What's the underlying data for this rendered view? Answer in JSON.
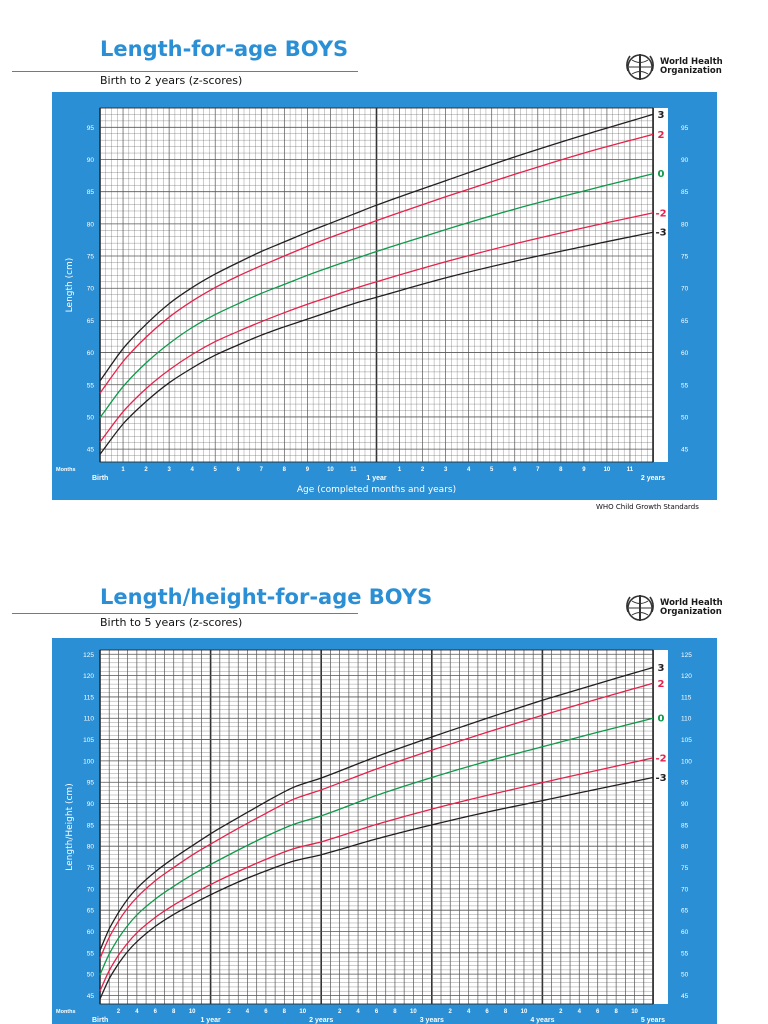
{
  "organization": {
    "line1": "World Health",
    "line2": "Organization"
  },
  "colors": {
    "brand": "#2a8fd4",
    "sd3": "#231f20",
    "sd2": "#e5224b",
    "median": "#0f9a4a"
  },
  "footer": "WHO Child Growth Standards",
  "chart_data": [
    {
      "type": "line",
      "title": "Length-for-age BOYS",
      "subtitle": "Birth to 2 years (z-scores)",
      "xlabel": "Age (completed months and years)",
      "ylabel": "Length (cm)",
      "x_unit_label": "Months",
      "xlim": [
        0,
        24
      ],
      "ylim": [
        43,
        98
      ],
      "yticks": [
        45,
        50,
        55,
        60,
        65,
        70,
        75,
        80,
        85,
        90,
        95
      ],
      "grid": true,
      "x_major_labels": [
        {
          "x": 0,
          "label": "Birth"
        },
        {
          "x": 12,
          "label": "1 year"
        },
        {
          "x": 24,
          "label": "2 years"
        }
      ],
      "x_minor_labels": [
        {
          "x": 1,
          "label": "1"
        },
        {
          "x": 2,
          "label": "2"
        },
        {
          "x": 3,
          "label": "3"
        },
        {
          "x": 4,
          "label": "4"
        },
        {
          "x": 5,
          "label": "5"
        },
        {
          "x": 6,
          "label": "6"
        },
        {
          "x": 7,
          "label": "7"
        },
        {
          "x": 8,
          "label": "8"
        },
        {
          "x": 9,
          "label": "9"
        },
        {
          "x": 10,
          "label": "10"
        },
        {
          "x": 11,
          "label": "11"
        },
        {
          "x": 13,
          "label": "1"
        },
        {
          "x": 14,
          "label": "2"
        },
        {
          "x": 15,
          "label": "3"
        },
        {
          "x": 16,
          "label": "4"
        },
        {
          "x": 17,
          "label": "5"
        },
        {
          "x": 18,
          "label": "6"
        },
        {
          "x": 19,
          "label": "7"
        },
        {
          "x": 20,
          "label": "8"
        },
        {
          "x": 21,
          "label": "9"
        },
        {
          "x": 22,
          "label": "10"
        },
        {
          "x": 23,
          "label": "11"
        }
      ],
      "series": [
        {
          "name": "3",
          "color": "#231f20",
          "x": [
            0,
            1,
            2,
            3,
            4,
            5,
            6,
            7,
            8,
            9,
            10,
            11,
            12,
            15,
            18,
            21,
            24
          ],
          "values": [
            55.6,
            60.6,
            64.4,
            67.6,
            70.1,
            72.2,
            74.0,
            75.7,
            77.2,
            78.7,
            80.1,
            81.5,
            82.9,
            86.7,
            90.4,
            93.8,
            97.0
          ]
        },
        {
          "name": "2",
          "color": "#e5224b",
          "x": [
            0,
            1,
            2,
            3,
            4,
            5,
            6,
            7,
            8,
            9,
            10,
            11,
            12,
            15,
            18,
            21,
            24
          ],
          "values": [
            53.7,
            58.6,
            62.4,
            65.5,
            68.0,
            70.1,
            71.9,
            73.5,
            75.0,
            76.5,
            77.9,
            79.2,
            80.5,
            84.2,
            87.7,
            91.0,
            93.9
          ]
        },
        {
          "name": "0",
          "color": "#0f9a4a",
          "x": [
            0,
            1,
            2,
            3,
            4,
            5,
            6,
            7,
            8,
            9,
            10,
            11,
            12,
            15,
            18,
            21,
            24
          ],
          "values": [
            49.9,
            54.7,
            58.4,
            61.4,
            63.9,
            65.9,
            67.6,
            69.2,
            70.6,
            72.0,
            73.3,
            74.5,
            75.7,
            79.1,
            82.3,
            85.1,
            87.8
          ]
        },
        {
          "name": "-2",
          "color": "#e5224b",
          "x": [
            0,
            1,
            2,
            3,
            4,
            5,
            6,
            7,
            8,
            9,
            10,
            11,
            12,
            15,
            18,
            21,
            24
          ],
          "values": [
            46.1,
            50.8,
            54.4,
            57.3,
            59.7,
            61.7,
            63.3,
            64.8,
            66.2,
            67.5,
            68.7,
            69.9,
            71.0,
            74.1,
            76.9,
            79.4,
            81.7
          ]
        },
        {
          "name": "-3",
          "color": "#231f20",
          "x": [
            0,
            1,
            2,
            3,
            4,
            5,
            6,
            7,
            8,
            9,
            10,
            11,
            12,
            15,
            18,
            21,
            24
          ],
          "values": [
            44.2,
            48.9,
            52.4,
            55.3,
            57.6,
            59.6,
            61.2,
            62.7,
            64.0,
            65.2,
            66.4,
            67.6,
            68.6,
            71.6,
            74.2,
            76.5,
            78.7
          ]
        }
      ]
    },
    {
      "type": "line",
      "title": "Length/height-for-age BOYS",
      "subtitle": "Birth to 5 years (z-scores)",
      "ylabel": "Length/Height (cm)",
      "x_unit_label": "Months",
      "xlim": [
        0,
        60
      ],
      "ylim": [
        43,
        126
      ],
      "yticks": [
        45,
        50,
        55,
        60,
        65,
        70,
        75,
        80,
        85,
        90,
        95,
        100,
        105,
        110,
        115,
        120,
        125
      ],
      "grid": true,
      "x_major_labels": [
        {
          "x": 0,
          "label": "Birth"
        },
        {
          "x": 12,
          "label": "1 year"
        },
        {
          "x": 24,
          "label": "2 years"
        },
        {
          "x": 36,
          "label": "3 years"
        },
        {
          "x": 48,
          "label": "4 years"
        },
        {
          "x": 60,
          "label": "5 years"
        }
      ],
      "x_minor_labels": [
        {
          "x": 2,
          "label": "2"
        },
        {
          "x": 4,
          "label": "4"
        },
        {
          "x": 6,
          "label": "6"
        },
        {
          "x": 8,
          "label": "8"
        },
        {
          "x": 10,
          "label": "10"
        },
        {
          "x": 14,
          "label": "2"
        },
        {
          "x": 16,
          "label": "4"
        },
        {
          "x": 18,
          "label": "6"
        },
        {
          "x": 20,
          "label": "8"
        },
        {
          "x": 22,
          "label": "10"
        },
        {
          "x": 26,
          "label": "2"
        },
        {
          "x": 28,
          "label": "4"
        },
        {
          "x": 30,
          "label": "6"
        },
        {
          "x": 32,
          "label": "8"
        },
        {
          "x": 34,
          "label": "10"
        },
        {
          "x": 38,
          "label": "2"
        },
        {
          "x": 40,
          "label": "4"
        },
        {
          "x": 42,
          "label": "6"
        },
        {
          "x": 44,
          "label": "8"
        },
        {
          "x": 46,
          "label": "10"
        },
        {
          "x": 50,
          "label": "2"
        },
        {
          "x": 52,
          "label": "4"
        },
        {
          "x": 54,
          "label": "6"
        },
        {
          "x": 56,
          "label": "8"
        },
        {
          "x": 58,
          "label": "10"
        }
      ],
      "series": [
        {
          "name": "3",
          "color": "#231f20",
          "x": [
            0,
            1,
            2,
            3,
            4,
            6,
            8,
            10,
            12,
            15,
            18,
            21,
            24,
            30,
            36,
            42,
            48,
            54,
            60
          ],
          "values": [
            55.6,
            60.6,
            64.4,
            67.6,
            70.1,
            74.0,
            77.2,
            80.1,
            82.9,
            86.7,
            90.4,
            93.8,
            96.0,
            101.0,
            105.6,
            110.0,
            114.2,
            118.1,
            121.9
          ]
        },
        {
          "name": "2",
          "color": "#e5224b",
          "x": [
            0,
            1,
            2,
            3,
            4,
            6,
            8,
            10,
            12,
            15,
            18,
            21,
            24,
            30,
            36,
            42,
            48,
            54,
            60
          ],
          "values": [
            53.7,
            58.6,
            62.4,
            65.5,
            68.0,
            71.9,
            75.0,
            77.9,
            80.5,
            84.2,
            87.7,
            91.0,
            93.2,
            98.1,
            102.5,
            106.7,
            110.7,
            114.5,
            118.2
          ]
        },
        {
          "name": "0",
          "color": "#0f9a4a",
          "x": [
            0,
            1,
            2,
            3,
            4,
            6,
            8,
            10,
            12,
            15,
            18,
            21,
            24,
            30,
            36,
            42,
            48,
            54,
            60
          ],
          "values": [
            49.9,
            54.7,
            58.4,
            61.4,
            63.9,
            67.6,
            70.6,
            73.3,
            75.7,
            79.1,
            82.3,
            85.1,
            87.1,
            91.9,
            96.1,
            99.9,
            103.3,
            106.7,
            110.0
          ]
        },
        {
          "name": "-2",
          "color": "#e5224b",
          "x": [
            0,
            1,
            2,
            3,
            4,
            6,
            8,
            10,
            12,
            15,
            18,
            21,
            24,
            30,
            36,
            42,
            48,
            54,
            60
          ],
          "values": [
            46.1,
            50.8,
            54.4,
            57.3,
            59.7,
            63.3,
            66.2,
            68.7,
            71.0,
            74.1,
            76.9,
            79.4,
            81.0,
            85.1,
            88.7,
            91.9,
            94.9,
            97.8,
            100.7
          ]
        },
        {
          "name": "-3",
          "color": "#231f20",
          "x": [
            0,
            1,
            2,
            3,
            4,
            6,
            8,
            10,
            12,
            15,
            18,
            21,
            24,
            30,
            36,
            42,
            48,
            54,
            60
          ],
          "values": [
            44.2,
            48.9,
            52.4,
            55.3,
            57.6,
            61.2,
            64.0,
            66.4,
            68.6,
            71.6,
            74.2,
            76.5,
            78.0,
            81.7,
            85.0,
            88.0,
            90.7,
            93.4,
            96.1
          ]
        }
      ]
    }
  ]
}
